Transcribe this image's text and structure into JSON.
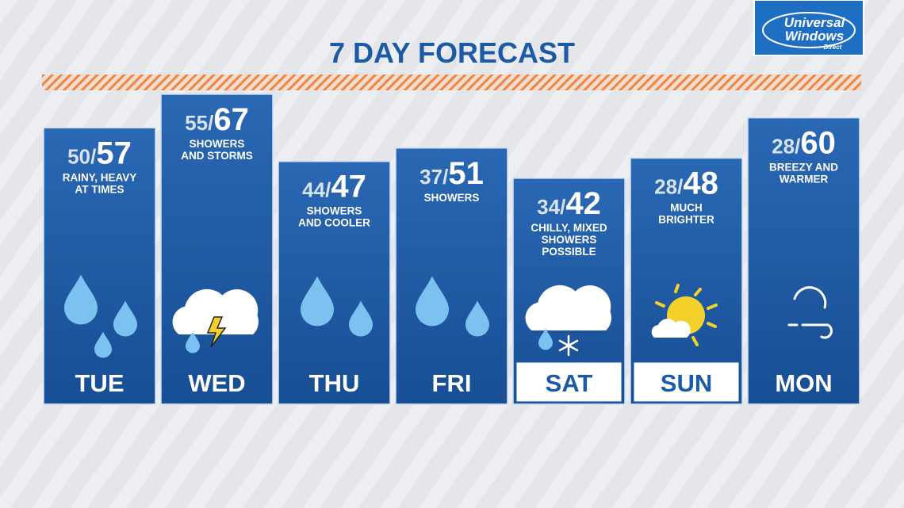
{
  "title": "7 DAY FORECAST",
  "logo": {
    "line1": "Universal",
    "line2": "Windows",
    "line3": "Direct"
  },
  "separator": "/",
  "days": [
    {
      "day": "TUE",
      "low": 50,
      "high": 57,
      "description": [
        "RAINY, HEAVY",
        "AT TIMES"
      ]
    },
    {
      "day": "WED",
      "low": 55,
      "high": 67,
      "description": [
        "SHOWERS",
        "AND STORMS"
      ]
    },
    {
      "day": "THU",
      "low": 44,
      "high": 47,
      "description": [
        "SHOWERS",
        "AND COOLER"
      ]
    },
    {
      "day": "FRI",
      "low": 37,
      "high": 51,
      "description": [
        "SHOWERS"
      ]
    },
    {
      "day": "SAT",
      "low": 34,
      "high": 42,
      "description": [
        "CHILLY, MIXED",
        "SHOWERS",
        "POSSIBLE"
      ]
    },
    {
      "day": "SUN",
      "low": 28,
      "high": 48,
      "description": [
        "MUCH",
        "BRIGHTER"
      ]
    },
    {
      "day": "MON",
      "low": 28,
      "high": 60,
      "description": [
        "BREEZY AND",
        "WARMER"
      ]
    }
  ]
}
